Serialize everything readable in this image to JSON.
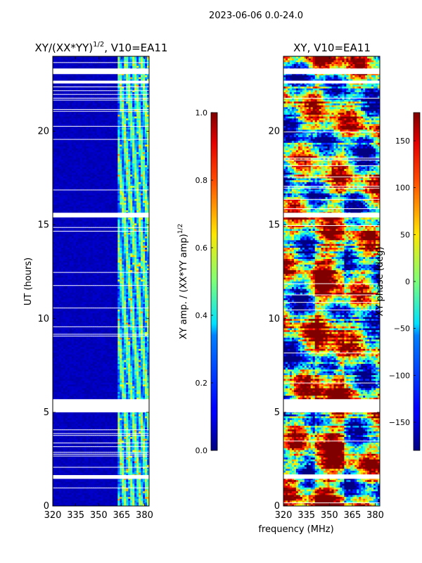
{
  "suptitle": "2023-06-06 0.0-24.0",
  "shared_xlabel": "frequency (MHz)",
  "chart_data": [
    {
      "type": "heatmap",
      "title_prefix": "XY/(XX*YY)",
      "title_exp": "1/2",
      "title_suffix": ", V10=EA11",
      "ylabel": "UT (hours)",
      "xlim": [
        320,
        383
      ],
      "ylim": [
        0,
        24
      ],
      "xticks": [
        320,
        335,
        350,
        365,
        380
      ],
      "yticks": [
        0,
        5,
        10,
        15,
        20
      ],
      "gaps_hours": [
        [
          23.05,
          23.35
        ],
        [
          22.55,
          22.7
        ],
        [
          15.4,
          15.65
        ],
        [
          5.0,
          5.7
        ],
        [
          1.45,
          1.65
        ]
      ],
      "colorbar": {
        "label_prefix": "XY amp. / (XX*YY amp)",
        "label_exp": "1/2",
        "range": [
          0.0,
          1.0
        ],
        "ticks": [
          0.0,
          0.2,
          0.4,
          0.6,
          0.8,
          1.0
        ],
        "tick_labels": [
          "0.0",
          "0.2",
          "0.4",
          "0.6",
          "0.8",
          "1.0"
        ]
      }
    },
    {
      "type": "heatmap",
      "title_prefix": "XY, V10=EA11",
      "title_exp": "",
      "title_suffix": "",
      "ylabel": "",
      "xlim": [
        320,
        383
      ],
      "ylim": [
        0,
        24
      ],
      "xticks": [
        320,
        335,
        350,
        365,
        380
      ],
      "yticks": [
        0,
        5,
        10,
        15,
        20
      ],
      "gaps_hours": [
        [
          23.05,
          23.35
        ],
        [
          22.55,
          22.7
        ],
        [
          15.4,
          15.65
        ],
        [
          5.0,
          5.7
        ],
        [
          1.45,
          1.65
        ]
      ],
      "colorbar": {
        "label_prefix": "XY phase (deg)",
        "label_exp": "",
        "range": [
          -180,
          180
        ],
        "ticks": [
          -150,
          -100,
          -50,
          0,
          50,
          100,
          150
        ],
        "tick_labels": [
          "−150",
          "−100",
          "−50",
          "0",
          "50",
          "100",
          "150"
        ]
      }
    }
  ]
}
